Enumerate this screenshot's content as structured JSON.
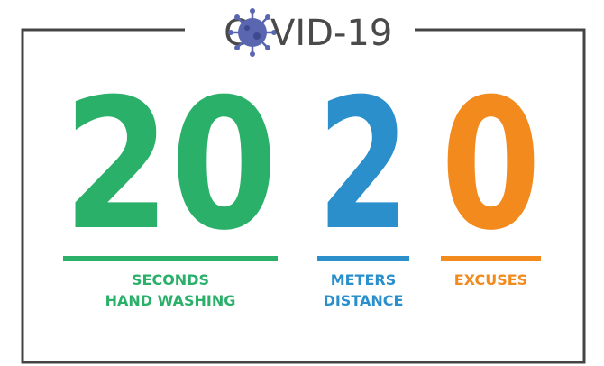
{
  "title_before_icon": "C",
  "title_after_icon": "VID-19",
  "items": [
    {
      "number": 20,
      "color": "#2bb06a",
      "label_lines": [
        "SECONDS",
        "HAND WASHING"
      ]
    },
    {
      "number": 2,
      "color": "#2a8fcb",
      "label_lines": [
        "METERS",
        "DISTANCE"
      ]
    },
    {
      "number": 0,
      "color": "#f28a1e",
      "label_lines": [
        "EXCUSES"
      ]
    }
  ]
}
